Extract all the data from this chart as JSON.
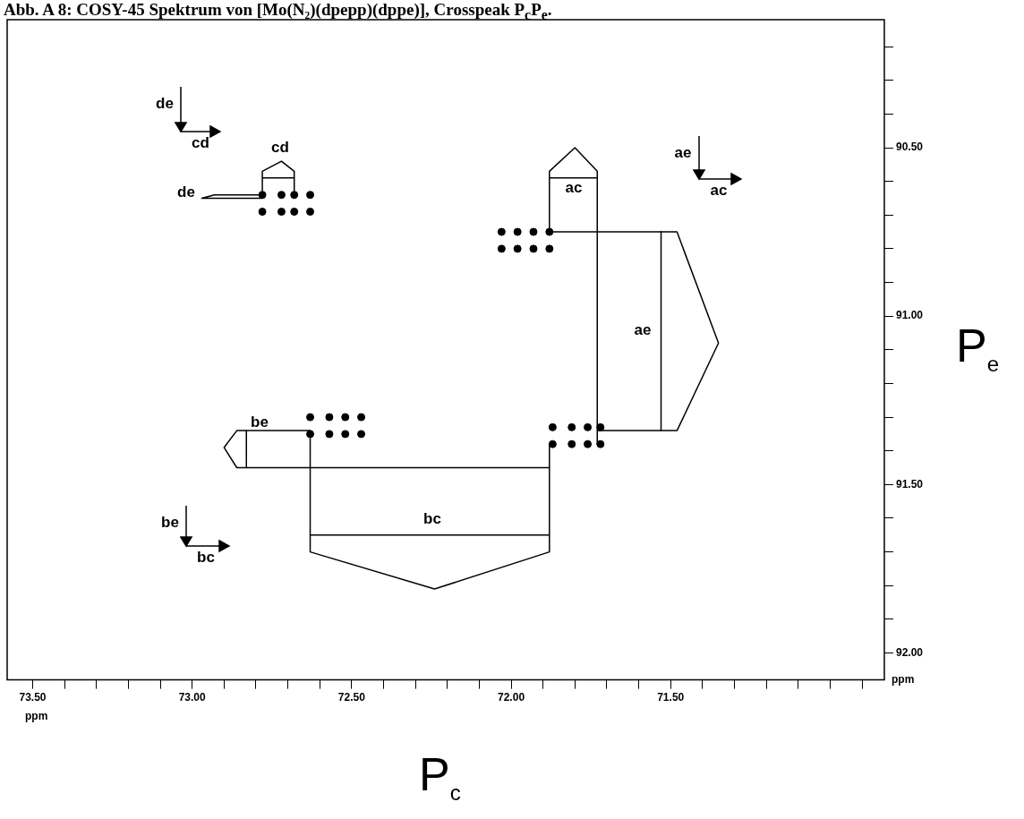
{
  "chart_data": {
    "type": "scatter",
    "title": "Abb. A 8: COSY-45 Spektrum von [Mo(N₂)(dpepp)(dppe)], Crosspeak P$_{c}$P$_{e}$.",
    "xlabel": "P$_{c}$",
    "ylabel": "P$_{e}$",
    "xlim": [
      73.58,
      70.83
    ],
    "ylim": [
      92.08,
      90.12
    ],
    "xticks": [
      {
        "value": 73.5,
        "label": "73.50"
      },
      {
        "value": 73.4,
        "label": null
      },
      {
        "value": 73.3,
        "label": null
      },
      {
        "value": 73.2,
        "label": null
      },
      {
        "value": 73.1,
        "label": null
      },
      {
        "value": 73.0,
        "label": "73.00"
      },
      {
        "value": 72.9,
        "label": null
      },
      {
        "value": 72.8,
        "label": null
      },
      {
        "value": 72.7,
        "label": null
      },
      {
        "value": 72.6,
        "label": null
      },
      {
        "value": 72.5,
        "label": "72.50"
      },
      {
        "value": 72.4,
        "label": null
      },
      {
        "value": 72.3,
        "label": null
      },
      {
        "value": 72.2,
        "label": null
      },
      {
        "value": 72.1,
        "label": null
      },
      {
        "value": 72.0,
        "label": "72.00"
      },
      {
        "value": 71.9,
        "label": null
      },
      {
        "value": 71.8,
        "label": null
      },
      {
        "value": 71.7,
        "label": null
      },
      {
        "value": 71.6,
        "label": null
      },
      {
        "value": 71.5,
        "label": "71.50"
      },
      {
        "value": 71.4,
        "label": null
      },
      {
        "value": 71.3,
        "label": null
      },
      {
        "value": 71.2,
        "label": null
      },
      {
        "value": 71.1,
        "label": null
      },
      {
        "value": 71.0,
        "label": null
      },
      {
        "value": 70.9,
        "label": null
      }
    ],
    "yticks": [
      {
        "value": 90.2,
        "label": null
      },
      {
        "value": 90.3,
        "label": null
      },
      {
        "value": 90.4,
        "label": null
      },
      {
        "value": 90.5,
        "label": "90.50"
      },
      {
        "value": 90.6,
        "label": null
      },
      {
        "value": 90.7,
        "label": null
      },
      {
        "value": 90.8,
        "label": null
      },
      {
        "value": 90.9,
        "label": null
      },
      {
        "value": 91.0,
        "label": "91.00"
      },
      {
        "value": 91.1,
        "label": null
      },
      {
        "value": 91.2,
        "label": null
      },
      {
        "value": 91.3,
        "label": null
      },
      {
        "value": 91.4,
        "label": null
      },
      {
        "value": 91.5,
        "label": "91.50"
      },
      {
        "value": 91.6,
        "label": null
      },
      {
        "value": 91.7,
        "label": null
      },
      {
        "value": 91.8,
        "label": null
      },
      {
        "value": 91.9,
        "label": null
      },
      {
        "value": 92.0,
        "label": "92.00"
      }
    ],
    "series": [
      {
        "marker": "circle",
        "color": "#000000",
        "x": [
          72.78,
          72.72,
          72.68,
          72.63,
          72.78,
          72.72,
          72.68,
          72.63,
          72.03,
          71.98,
          71.93,
          71.88,
          72.03,
          71.98,
          71.93,
          71.88,
          72.63,
          72.57,
          72.52,
          72.47,
          72.63,
          72.57,
          72.52,
          72.47,
          71.87,
          71.81,
          71.76,
          71.72,
          71.87,
          71.81,
          71.76,
          71.72
        ],
        "values": [
          90.64,
          90.64,
          90.69,
          90.69,
          90.69,
          90.69,
          90.64,
          90.64,
          90.75,
          90.75,
          90.8,
          90.8,
          90.8,
          90.8,
          90.75,
          90.75,
          91.3,
          91.3,
          91.35,
          91.35,
          91.35,
          91.35,
          91.3,
          91.3,
          91.33,
          91.33,
          91.38,
          91.38,
          91.38,
          91.38,
          91.33,
          91.33
        ]
      },
      {
        "type": "line",
        "color": "#000000",
        "x": [
          71.88,
          71.88,
          71.8,
          71.73,
          71.73
        ],
        "values": [
          90.75,
          90.57,
          90.5,
          90.57,
          91.38
        ]
      },
      {
        "type": "line",
        "color": "#000000",
        "x": [
          71.88,
          71.73
        ],
        "values": [
          90.59,
          90.59
        ]
      },
      {
        "type": "line",
        "color": "#000000",
        "x": [
          71.88,
          71.48,
          71.35,
          71.48,
          71.73
        ],
        "values": [
          90.75,
          90.75,
          91.08,
          91.34,
          91.34
        ]
      },
      {
        "type": "line",
        "color": "#000000",
        "x": [
          71.53,
          71.53
        ],
        "values": [
          90.75,
          91.34
        ]
      },
      {
        "type": "line",
        "color": "#000000",
        "x": [
          72.63,
          72.86,
          72.9,
          72.86,
          71.88
        ],
        "values": [
          91.34,
          91.34,
          91.39,
          91.45,
          91.45
        ]
      },
      {
        "type": "line",
        "color": "#000000",
        "x": [
          72.83,
          72.83
        ],
        "values": [
          91.34,
          91.45
        ]
      },
      {
        "type": "line",
        "color": "#000000",
        "x": [
          72.63,
          72.63,
          72.24,
          71.88,
          71.88
        ],
        "values": [
          91.34,
          91.7,
          91.81,
          91.7,
          91.38
        ]
      },
      {
        "type": "line",
        "color": "#000000",
        "x": [
          72.63,
          71.88
        ],
        "values": [
          91.65,
          91.65
        ]
      },
      {
        "type": "line",
        "color": "#000000",
        "x": [
          72.78,
          72.78,
          72.72,
          72.68,
          72.68
        ],
        "values": [
          90.64,
          90.57,
          90.54,
          90.57,
          90.65
        ]
      },
      {
        "type": "line",
        "color": "#000000",
        "x": [
          72.78,
          72.68
        ],
        "values": [
          90.59,
          90.59
        ]
      },
      {
        "type": "line",
        "color": "#000000",
        "x": [
          72.78,
          72.93,
          72.97,
          72.93,
          72.78
        ],
        "values": [
          90.64,
          90.64,
          90.65,
          90.65,
          90.65
        ]
      }
    ],
    "annotations": [
      "cd",
      "de",
      "ac",
      "ae",
      "be",
      "bc",
      "de",
      "cd",
      "ae",
      "ac",
      "be",
      "bc",
      "ppm",
      "ppm"
    ]
  }
}
